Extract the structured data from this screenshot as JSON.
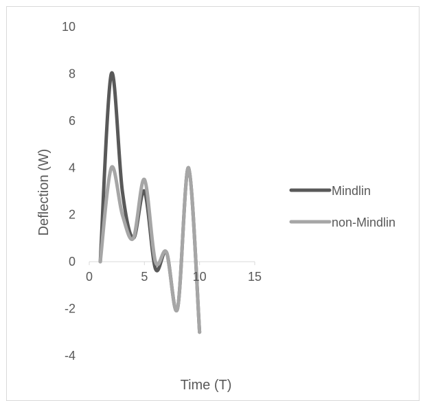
{
  "chart_data": {
    "type": "line",
    "title": "",
    "xlabel": "Time (T)",
    "ylabel": "Deflection (W)",
    "xlim": [
      0,
      15
    ],
    "ylim": [
      -4,
      10
    ],
    "xticks": [
      0,
      5,
      10,
      15
    ],
    "yticks": [
      10,
      8,
      6,
      4,
      2,
      0,
      -2,
      -4
    ],
    "grid": false,
    "legend_position": "right",
    "smooth": true,
    "series": [
      {
        "name": "Mindlin",
        "color": "#595959",
        "x": [
          1,
          2,
          3,
          4,
          5,
          6,
          7,
          8,
          9,
          10
        ],
        "y": [
          0,
          8,
          3,
          1,
          3,
          -0.3,
          0.4,
          -2,
          4,
          -3
        ]
      },
      {
        "name": "non-Mindlin",
        "color": "#a6a6a6",
        "x": [
          1,
          2,
          3,
          4,
          5,
          6,
          7,
          8,
          9,
          10
        ],
        "y": [
          0,
          4,
          2,
          1,
          3.5,
          0,
          0.4,
          -2,
          4,
          -3
        ]
      }
    ]
  }
}
